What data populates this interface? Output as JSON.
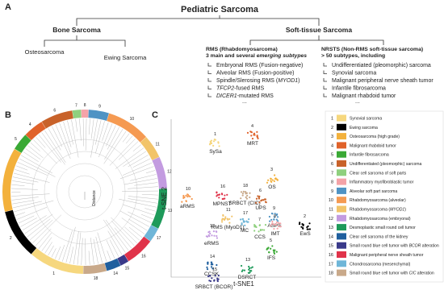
{
  "panel_a": {
    "label": "A",
    "title": "Pediatric Sarcoma",
    "bone": {
      "title": "Bone Sarcoma",
      "children": [
        "Osteosarcoma",
        "Ewing Sarcoma"
      ]
    },
    "soft": {
      "title": "Soft-tissue Sarcoma",
      "rms": {
        "title": "RMS (Rhabdomyosarcoma)",
        "subtitle": {
          "text": "3 main and several emerging subtypes",
          "italic": "emerging subtypes"
        },
        "items": [
          {
            "text": "Embryonal RMS (Fusion-negative)"
          },
          {
            "text": "Alveolar RMS (Fusion-positive)"
          },
          {
            "text": "Spindle/Slerosing RMS (MYOD1)",
            "italic": "MYOD1"
          },
          {
            "text": "TFCP2-fused RMS",
            "italic": "TFCP2"
          },
          {
            "text": "DICER1-mutated RMS",
            "italic": "DICER1"
          }
        ],
        "more": "..."
      },
      "nrsts": {
        "title": "NRSTS (Non-RMS soft-tissue sarcoma)",
        "subtitle": "> 50 subtypes, including",
        "items": [
          "Undifferentiated (pleomorphic) sarcoma",
          "Synovial sarcoma",
          "Malignant peripheral nerve sheath tumor",
          "Infantile fibrosarcoma",
          "Malignant rhabdoid tumor"
        ],
        "more": "..."
      }
    }
  },
  "panel_b": {
    "label": "B",
    "center_label": "Distance"
  },
  "panel_c": {
    "label": "C",
    "x_label": "t-SNE1",
    "y_label": "t-SNE 2",
    "clusters": [
      {
        "num": "1",
        "name": "SySa"
      },
      {
        "num": "4",
        "name": "MRT"
      },
      {
        "num": "3",
        "name": "OS"
      },
      {
        "num": "10",
        "name": "aRMS"
      },
      {
        "num": "16",
        "name": "MPNST"
      },
      {
        "num": "18",
        "name": "SRBCT (CIC)"
      },
      {
        "num": "6",
        "name": "UPS"
      },
      {
        "num": "11",
        "name": "RMS (MyoD1)"
      },
      {
        "num": "12",
        "name": "eRMS"
      },
      {
        "num": "17",
        "name": "MC"
      },
      {
        "num": "9",
        "name": "ASPS"
      },
      {
        "num": "8",
        "name": "IMT"
      },
      {
        "num": "7",
        "name": "CCS"
      },
      {
        "num": "2",
        "name": "EwS"
      },
      {
        "num": "5",
        "name": "IFS"
      },
      {
        "num": "14",
        "name": "CCSK"
      },
      {
        "num": "13",
        "name": "DSRCT"
      },
      {
        "num": "15",
        "name": "SRBCT (BCOR)"
      }
    ],
    "legend": [
      {
        "num": "1",
        "name": {
          "text": "Synovial sarcoma"
        },
        "color": "#f6d77e"
      },
      {
        "num": "2",
        "name": {
          "text": "Ewing sarcoma"
        },
        "color": "#000000"
      },
      {
        "num": "3",
        "name": {
          "text": "Osteosarcoma (high grade)"
        },
        "color": "#f3b13c"
      },
      {
        "num": "4",
        "name": {
          "text": "Malignant rhabdoid tumor"
        },
        "color": "#e0622a"
      },
      {
        "num": "5",
        "name": {
          "text": "Infantile fibrosarcoma"
        },
        "color": "#3aa935"
      },
      {
        "num": "6",
        "name": {
          "text": "Undifferentiated (pleomorphic) sarcoma"
        },
        "color": "#c8622a"
      },
      {
        "num": "7",
        "name": {
          "text": "Clear cell sarcoma of soft parts"
        },
        "color": "#8fd07e"
      },
      {
        "num": "8",
        "name": {
          "text": "Inflammatory myofibroblastic tumor"
        },
        "color": "#f4a3a8"
      },
      {
        "num": "9",
        "name": {
          "text": "Alveolar soft part sarcoma"
        },
        "color": "#4f93c4"
      },
      {
        "num": "10",
        "name": {
          "text": "Rhabdomyosarcoma (alveolar)"
        },
        "color": "#f59a52"
      },
      {
        "num": "11",
        "name": {
          "text": "Rhabdomyosarcoma (MYOD1)",
          "italic": "MYOD1"
        },
        "color": "#f2c46a"
      },
      {
        "num": "12",
        "name": {
          "text": "Rhabdomyosarcoma (embryonal)"
        },
        "color": "#c39be0"
      },
      {
        "num": "13",
        "name": {
          "text": "Desmoplastic small round cell tumor"
        },
        "color": "#1e9a5a"
      },
      {
        "num": "14",
        "name": {
          "text": "Clear cell sarcoma of the kidney"
        },
        "color": "#1f5f9e"
      },
      {
        "num": "15",
        "name": {
          "text": "Small round blue cell tumor with BCOR alteration",
          "italic": "BCOR"
        },
        "color": "#3a3a8a"
      },
      {
        "num": "16",
        "name": {
          "text": "Malignant peripheral nerve sheath tumor"
        },
        "color": "#e0334a"
      },
      {
        "num": "17",
        "name": {
          "text": "Chondrosarcoma (mesenchymal)"
        },
        "color": "#6fb6d8"
      },
      {
        "num": "18",
        "name": {
          "text": "Small round blue cell tumor with CIC alteration",
          "italic": "CIC"
        },
        "color": "#c9a98a"
      }
    ]
  }
}
